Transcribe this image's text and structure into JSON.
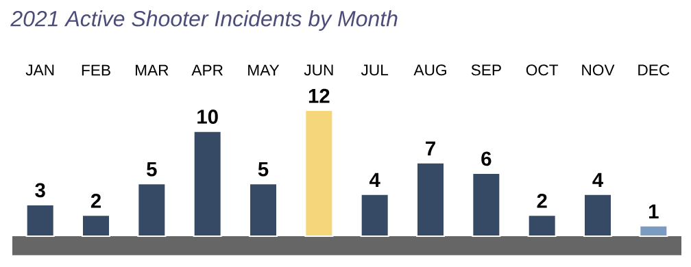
{
  "chart_data": {
    "type": "bar",
    "title": "2021 Active Shooter Incidents by Month",
    "categories": [
      "JAN",
      "FEB",
      "MAR",
      "APR",
      "MAY",
      "JUN",
      "JUL",
      "AUG",
      "SEP",
      "OCT",
      "NOV",
      "DEC"
    ],
    "values": [
      3,
      2,
      5,
      10,
      5,
      12,
      4,
      7,
      6,
      2,
      4,
      1
    ],
    "colors": [
      "#364a66",
      "#364a66",
      "#364a66",
      "#364a66",
      "#364a66",
      "#f5d67a",
      "#364a66",
      "#364a66",
      "#364a66",
      "#364a66",
      "#364a66",
      "#7a9cc0"
    ],
    "data_labels": true
  }
}
